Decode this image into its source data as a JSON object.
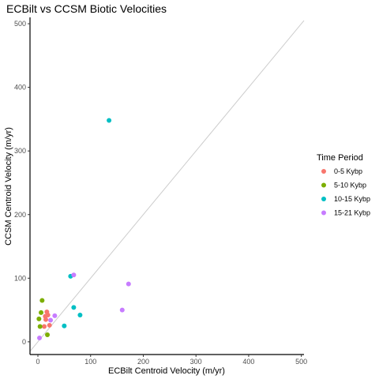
{
  "chart_data": {
    "type": "scatter",
    "title": "ECBilt vs CCSM Biotic Velocities",
    "xlabel": "ECBilt Centroid Velocity (m/yr)",
    "ylabel": "CCSM Centroid Velocity (m/yr)",
    "xlim": [
      -15,
      505
    ],
    "ylim": [
      -20,
      510
    ],
    "xticks": [
      0,
      100,
      200,
      300,
      400,
      500
    ],
    "yticks": [
      0,
      100,
      200,
      300,
      400,
      500
    ],
    "grid": false,
    "reference_line": "y = x",
    "legend": {
      "title": "Time Period",
      "placement": "right"
    },
    "series": [
      {
        "name": "0-5 Kybp",
        "color": "#F8766D",
        "points": [
          [
            12,
            24
          ],
          [
            14,
            40
          ],
          [
            15,
            35
          ],
          [
            17,
            47
          ],
          [
            19,
            42
          ],
          [
            22,
            26
          ]
        ]
      },
      {
        "name": "5-10 Kybp",
        "color": "#7CAE00",
        "points": [
          [
            2,
            36
          ],
          [
            4,
            24
          ],
          [
            6,
            46
          ],
          [
            8,
            65
          ],
          [
            18,
            11
          ]
        ]
      },
      {
        "name": "10-15 Kybp",
        "color": "#00BFC4",
        "points": [
          [
            50,
            25
          ],
          [
            62,
            103
          ],
          [
            68,
            54
          ],
          [
            80,
            42
          ],
          [
            135,
            348
          ]
        ]
      },
      {
        "name": "15-21 Kybp",
        "color": "#C77CFF",
        "points": [
          [
            3,
            6
          ],
          [
            24,
            34
          ],
          [
            32,
            41
          ],
          [
            68,
            105
          ],
          [
            160,
            50
          ],
          [
            172,
            91
          ]
        ]
      }
    ]
  }
}
